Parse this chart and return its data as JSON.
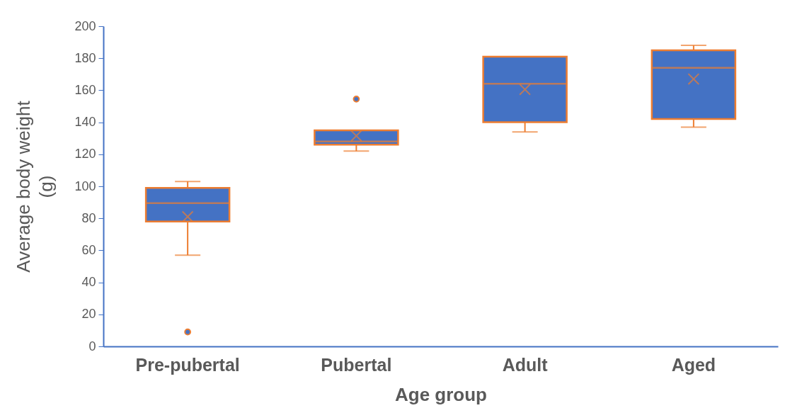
{
  "chart_data": {
    "type": "box",
    "xlabel": "Age group",
    "ylabel": "Average body weight (g)",
    "categories": [
      "Pre-pubertal",
      "Pubertal",
      "Adult",
      "Aged"
    ],
    "series": [
      {
        "color": "#4472c4",
        "boxes": [
          {
            "low": 57,
            "q1": 78,
            "median": 89.5,
            "q3": 99,
            "high": 103,
            "mean": 81,
            "outliers": [
              9
            ]
          },
          {
            "low": 122,
            "q1": 126,
            "median": 128,
            "q3": 135,
            "high": 135,
            "mean": 131.5,
            "outliers": [
              154.5
            ]
          },
          {
            "low": 134,
            "q1": 140,
            "median": 164,
            "q3": 181,
            "high": 181,
            "mean": 160.5
          },
          {
            "low": 137,
            "q1": 142,
            "median": 174,
            "q3": 185,
            "high": 188,
            "mean": 167
          }
        ]
      }
    ],
    "ylim": [
      0,
      200
    ],
    "yticks": [
      0,
      20,
      40,
      60,
      80,
      100,
      120,
      140,
      160,
      180,
      200
    ],
    "grid": false
  }
}
